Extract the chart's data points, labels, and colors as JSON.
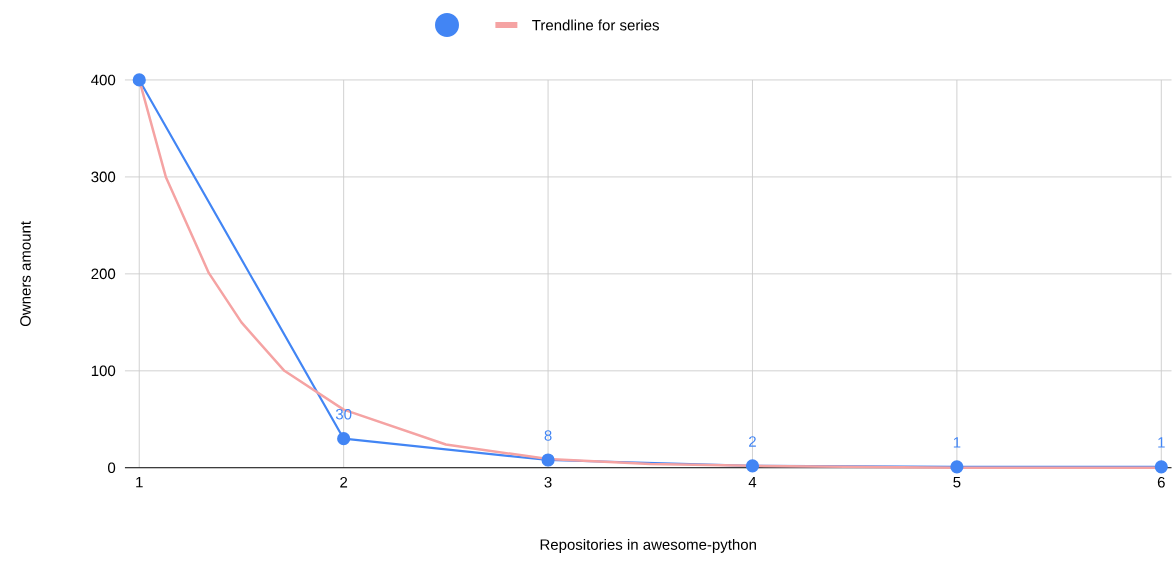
{
  "chart_data": {
    "type": "line",
    "xlabel": "Repositories in awesome-python",
    "ylabel": "Owners amount",
    "x": [
      1,
      2,
      3,
      4,
      5,
      6
    ],
    "series": [
      {
        "color": "#4285f4",
        "marker": "circle",
        "values": [
          400,
          30,
          8,
          2,
          1,
          1
        ],
        "value_labels": [
          null,
          "30",
          "8",
          "2",
          "1",
          "1"
        ]
      },
      {
        "name": "Trendline for series",
        "color": "#f5a3a3",
        "marker": "none",
        "x": [
          1,
          1.13,
          1.34,
          1.5,
          1.71,
          2,
          2.5,
          3,
          3.5,
          4,
          5,
          6
        ],
        "values": [
          400,
          300,
          201,
          150,
          100,
          60,
          24,
          9,
          4,
          2,
          0,
          0
        ]
      }
    ],
    "xlim": [
      0.93,
      6.05
    ],
    "xticks": [
      1,
      2,
      3,
      4,
      5,
      6
    ],
    "ylim": [
      0,
      400
    ],
    "yticks": [
      0,
      100,
      200,
      300,
      400
    ],
    "grid": true,
    "legend": "top"
  }
}
